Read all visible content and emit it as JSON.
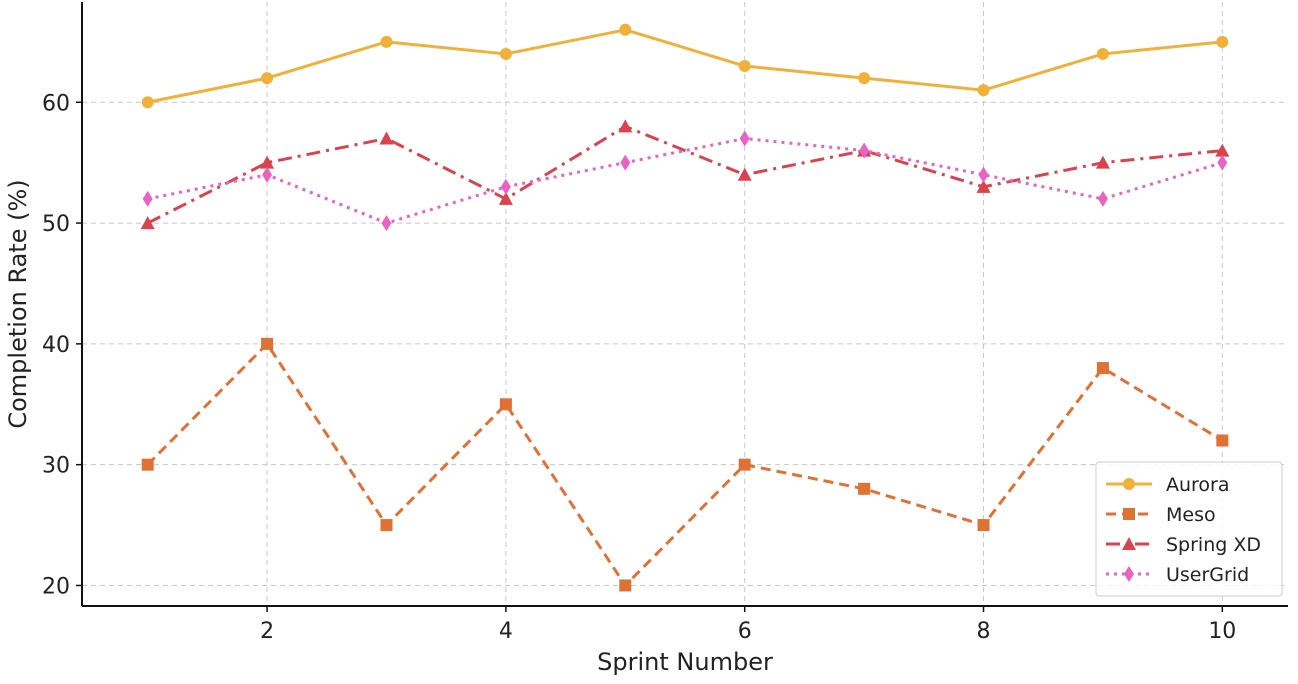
{
  "chart_data": {
    "type": "line",
    "xlabel": "Sprint Number",
    "ylabel": "Completion Rate (%)",
    "x": [
      1,
      2,
      3,
      4,
      5,
      6,
      7,
      8,
      9,
      10
    ],
    "xlim": [
      0.45,
      10.55
    ],
    "ylim": [
      18.3,
      68.3
    ],
    "xticks": [
      2,
      4,
      6,
      8,
      10
    ],
    "yticks": [
      20,
      30,
      40,
      50,
      60
    ],
    "grid": true,
    "legend_position": "lower-right",
    "series": [
      {
        "name": "Aurora",
        "values": [
          60,
          62,
          65,
          64,
          66,
          63,
          62,
          61,
          64,
          65
        ],
        "color": "#F0B03A",
        "line_style": "solid",
        "marker": "circle"
      },
      {
        "name": "Meso",
        "values": [
          30,
          40,
          25,
          35,
          20,
          30,
          28,
          25,
          38,
          32
        ],
        "color": "#E07135",
        "line_style": "dashed",
        "marker": "square"
      },
      {
        "name": "Spring XD",
        "values": [
          50,
          55,
          57,
          52,
          58,
          54,
          56,
          53,
          55,
          56
        ],
        "color": "#D8434E",
        "line_style": "dashdot",
        "marker": "triangle"
      },
      {
        "name": "UserGrid",
        "values": [
          52,
          54,
          50,
          53,
          55,
          57,
          56,
          54,
          52,
          55
        ],
        "color": "#E963C2",
        "line_style": "dotted",
        "marker": "diamond"
      }
    ]
  }
}
